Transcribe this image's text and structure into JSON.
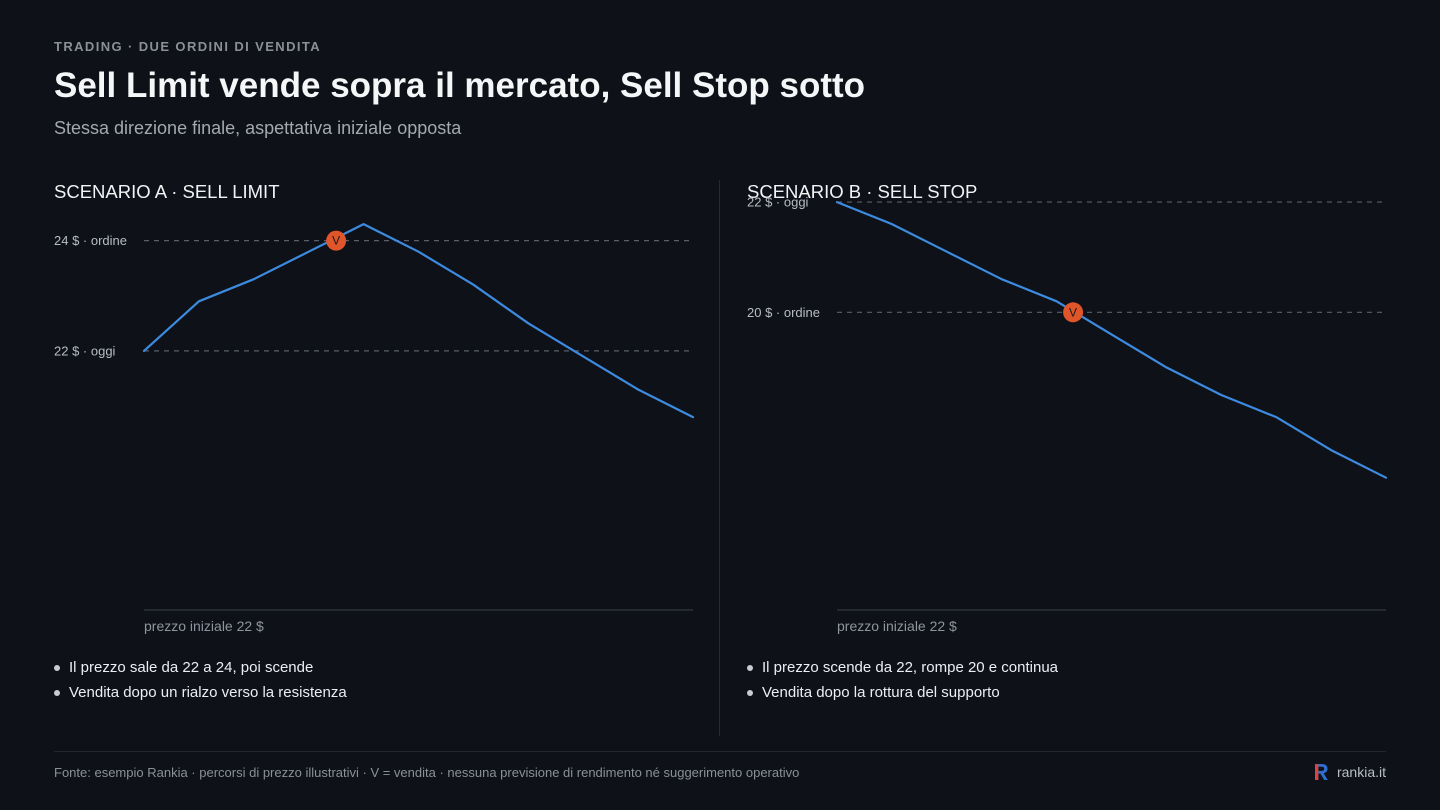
{
  "header": {
    "eyebrow": "TRADING · DUE ORDINI DI VENDITA",
    "title": "Sell Limit vende sopra il mercato, Sell Stop sotto",
    "subtitle": "Stessa direzione finale, aspettativa iniziale opposta"
  },
  "colors": {
    "background": "#0e1118",
    "line": "#3d8be0",
    "marker": "#e0552a",
    "grid_dashed": "#5a5f69",
    "axis": "#3a3e48"
  },
  "chart_data": [
    {
      "type": "line",
      "panel_title": "SCENARIO A · SELL LIMIT",
      "xlabel": "prezzo iniziale 22 $",
      "ylim": [
        17.3,
        25.1
      ],
      "x": [
        0,
        1,
        2,
        3,
        4,
        5,
        6,
        7,
        8,
        9,
        10
      ],
      "values": [
        22.0,
        22.9,
        23.3,
        23.8,
        24.3,
        23.8,
        23.2,
        22.5,
        21.9,
        21.3,
        20.8
      ],
      "reference_lines": [
        {
          "value": 24,
          "label": "24 $ · ordine"
        },
        {
          "value": 22,
          "label": "22 $ · oggi"
        }
      ],
      "marker": {
        "x": 3.5,
        "value": 24,
        "label": "V"
      },
      "bullets": [
        "Il prezzo sale da 22 a 24, poi scende",
        "Vendita dopo un rialzo verso la resistenza"
      ]
    },
    {
      "type": "line",
      "panel_title": "SCENARIO B · SELL STOP",
      "xlabel": "prezzo iniziale 22 $",
      "ylim": [
        14.6,
        22.4
      ],
      "x": [
        0,
        1,
        2,
        3,
        4,
        5,
        6,
        7,
        8,
        9,
        10
      ],
      "values": [
        22.0,
        21.6,
        21.1,
        20.6,
        20.2,
        19.6,
        19.0,
        18.5,
        18.1,
        17.5,
        17.0
      ],
      "reference_lines": [
        {
          "value": 22,
          "label": "22 $ · oggi"
        },
        {
          "value": 20,
          "label": "20 $ · ordine"
        }
      ],
      "marker": {
        "x": 4.3,
        "value": 20,
        "label": "V"
      },
      "bullets": [
        "Il prezzo scende da 22, rompe 20 e continua",
        "Vendita dopo la rottura del supporto"
      ]
    }
  ],
  "footer": {
    "note": "Fonte: esempio Rankia · percorsi di prezzo illustrativi · V = vendita · nessuna previsione di rendimento né suggerimento operativo",
    "brand": "rankia.it"
  }
}
